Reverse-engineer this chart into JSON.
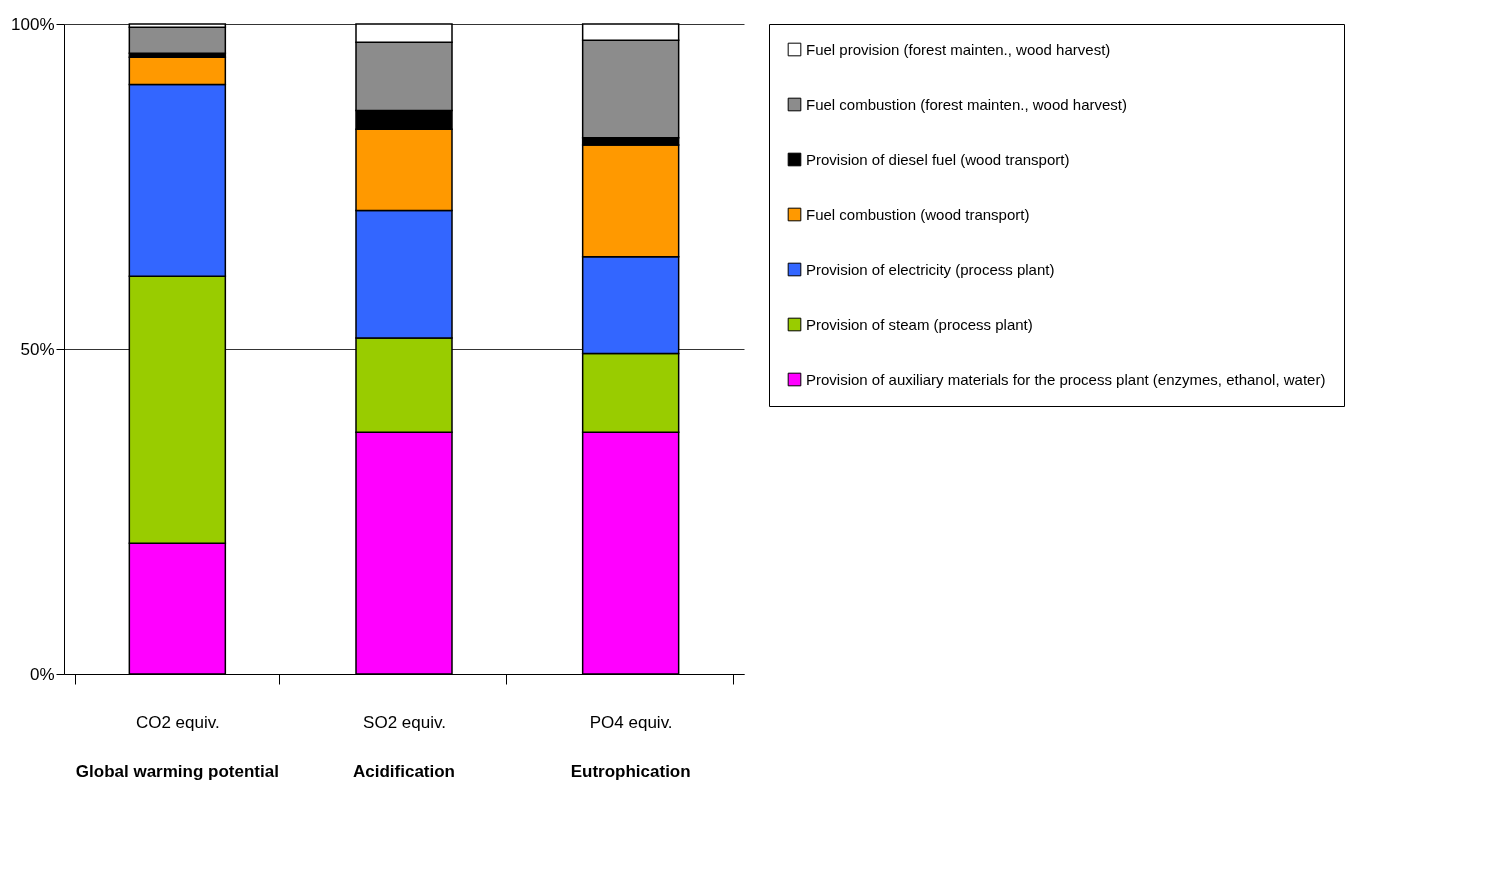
{
  "chart_data": {
    "type": "bar",
    "stacked": true,
    "categories": [
      "CO2 equiv.",
      "SO2 equiv.",
      "PO4 equiv."
    ],
    "series": [
      {
        "name": "Provision of auxiliary materials for the process plant (enzymes, ethanol, water)",
        "color": "#ff00ff",
        "values": [
          20.1,
          37.2,
          37.2
        ]
      },
      {
        "name": "Provision of steam (process plant)",
        "color": "#99cc00",
        "values": [
          41.1,
          14.5,
          12.1
        ]
      },
      {
        "name": "Provision of electricity (process plant)",
        "color": "#3366ff",
        "values": [
          29.5,
          19.6,
          14.9
        ]
      },
      {
        "name": "Fuel combustion (wood transport)",
        "color": "#ff9900",
        "values": [
          4.2,
          12.5,
          17.2
        ]
      },
      {
        "name": "Provision of diesel fuel (wood transport)",
        "color": "#000000",
        "values": [
          0.6,
          2.9,
          1.1
        ]
      },
      {
        "name": "Fuel combustion (forest mainten., wood harvest)",
        "color": "#8c8c8c",
        "values": [
          4.0,
          10.5,
          15.0
        ]
      },
      {
        "name": "Fuel provision (forest mainten., wood harvest)",
        "color": "#ffffff",
        "values": [
          0.5,
          2.8,
          2.5
        ]
      }
    ],
    "ylim": [
      0,
      100
    ],
    "yticks": [
      {
        "value": 0,
        "label": "0%"
      },
      {
        "value": 50,
        "label": "50%"
      },
      {
        "value": 100,
        "label": "100%"
      }
    ],
    "grid": "y",
    "legend": "right",
    "annotations": [
      "Global warming potential",
      "Acidification",
      "Eutrophication"
    ]
  }
}
